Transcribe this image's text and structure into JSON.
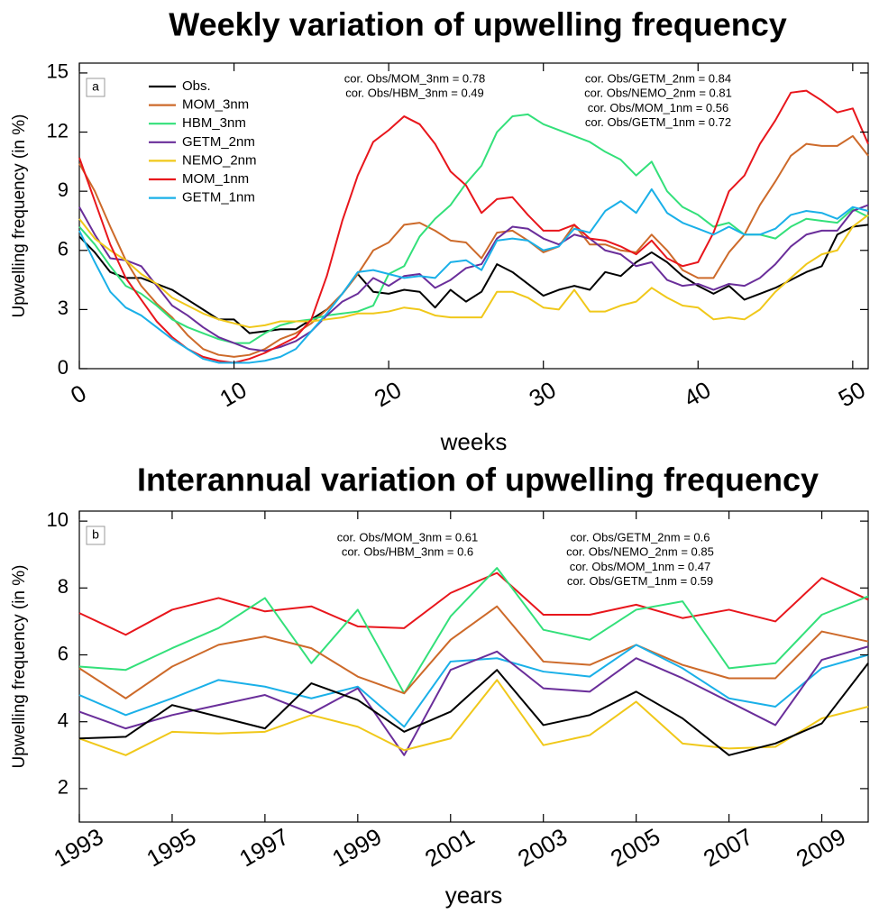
{
  "chart_data": [
    {
      "type": "line",
      "title": "Weekly variation of upwelling frequency",
      "panel_label": "a",
      "x_label": "weeks",
      "y_label": "Upwelling frequency (in %)",
      "x": [
        0,
        1,
        2,
        3,
        4,
        5,
        6,
        7,
        8,
        9,
        10,
        11,
        12,
        13,
        14,
        15,
        16,
        17,
        18,
        19,
        20,
        21,
        22,
        23,
        24,
        25,
        26,
        27,
        28,
        29,
        30,
        31,
        32,
        33,
        34,
        35,
        36,
        37,
        38,
        39,
        40,
        41,
        42,
        43,
        44,
        45,
        46,
        47,
        48,
        49,
        50,
        51
      ],
      "xlim": [
        0,
        51
      ],
      "xticks": [
        0,
        10,
        20,
        30,
        40,
        50
      ],
      "ylim": [
        0,
        15.5
      ],
      "yticks": [
        0,
        3,
        6,
        9,
        12,
        15
      ],
      "annotations": [
        "cor. Obs/MOM_3nm = 0.78",
        "cor. Obs/HBM_3nm = 0.49",
        "cor. Obs/GETM_2nm = 0.84",
        "cor. Obs/NEMO_2nm = 0.81",
        "cor. Obs/MOM_1nm = 0.56",
        "cor. Obs/GETM_1nm = 0.72"
      ],
      "series": [
        {
          "name": "Obs.",
          "color": "#000000",
          "values": [
            6.7,
            5.9,
            4.9,
            4.6,
            4.6,
            4.3,
            4.0,
            3.5,
            3.0,
            2.5,
            2.5,
            1.8,
            1.9,
            2.0,
            2.0,
            2.5,
            3.0,
            3.8,
            4.8,
            3.9,
            3.8,
            4.0,
            3.9,
            3.1,
            4.0,
            3.4,
            3.9,
            5.3,
            4.9,
            4.3,
            3.7,
            4.0,
            4.2,
            4.0,
            4.9,
            4.7,
            5.4,
            5.9,
            5.4,
            4.7,
            4.2,
            3.8,
            4.2,
            3.5,
            3.8,
            4.1,
            4.5,
            4.9,
            5.2,
            6.8,
            7.2,
            7.3
          ]
        },
        {
          "name": "MOM_3nm",
          "color": "#cd6a2a",
          "values": [
            10.4,
            9.0,
            7.2,
            5.5,
            4.2,
            3.3,
            2.6,
            1.7,
            1.0,
            0.7,
            0.6,
            0.7,
            1.0,
            1.5,
            1.8,
            2.3,
            3.0,
            3.8,
            4.8,
            6.0,
            6.4,
            7.3,
            7.4,
            7.0,
            6.5,
            6.4,
            5.6,
            6.9,
            7.0,
            6.5,
            5.9,
            6.2,
            7.3,
            6.3,
            6.3,
            6.0,
            5.9,
            6.8,
            6.0,
            5.0,
            4.6,
            4.6,
            5.9,
            6.8,
            8.3,
            9.5,
            10.8,
            11.4,
            11.3,
            11.3,
            11.8,
            10.8
          ]
        },
        {
          "name": "HBM_3nm",
          "color": "#33e07a",
          "values": [
            7.2,
            6.3,
            5.2,
            4.2,
            3.8,
            3.2,
            2.5,
            2.1,
            1.8,
            1.5,
            1.3,
            1.3,
            1.8,
            2.2,
            2.4,
            2.5,
            2.7,
            2.8,
            2.9,
            3.2,
            4.8,
            5.2,
            6.7,
            7.6,
            8.3,
            9.4,
            10.3,
            12.0,
            12.8,
            12.9,
            12.4,
            12.1,
            11.8,
            11.5,
            11.0,
            10.6,
            9.8,
            10.5,
            9.0,
            8.2,
            7.8,
            7.2,
            7.4,
            6.8,
            6.8,
            6.6,
            7.2,
            7.6,
            7.5,
            7.4,
            8.1,
            7.7
          ]
        },
        {
          "name": "GETM_2nm",
          "color": "#6a2e9a",
          "values": [
            8.2,
            6.8,
            5.6,
            5.5,
            5.2,
            4.2,
            3.2,
            2.7,
            2.1,
            1.6,
            1.3,
            1.0,
            0.9,
            1.1,
            1.4,
            1.9,
            2.7,
            3.4,
            3.8,
            4.6,
            4.2,
            4.7,
            4.8,
            4.1,
            4.5,
            5.1,
            5.3,
            6.6,
            7.2,
            7.1,
            6.6,
            6.3,
            6.8,
            6.6,
            6.0,
            5.8,
            5.2,
            5.4,
            4.5,
            4.2,
            4.3,
            4.0,
            4.3,
            4.2,
            4.6,
            5.3,
            6.2,
            6.8,
            7.0,
            7.0,
            8.0,
            8.3
          ]
        },
        {
          "name": "NEMO_2nm",
          "color": "#f0c81a",
          "values": [
            7.6,
            6.6,
            6.0,
            5.5,
            4.8,
            4.3,
            3.6,
            3.2,
            2.8,
            2.5,
            2.3,
            2.1,
            2.2,
            2.4,
            2.4,
            2.4,
            2.5,
            2.6,
            2.8,
            2.8,
            2.9,
            3.1,
            3.0,
            2.7,
            2.6,
            2.6,
            2.6,
            3.9,
            3.9,
            3.6,
            3.1,
            3.0,
            4.0,
            2.9,
            2.9,
            3.2,
            3.4,
            4.1,
            3.6,
            3.2,
            3.1,
            2.5,
            2.6,
            2.5,
            3.0,
            3.9,
            4.6,
            5.3,
            5.8,
            6.0,
            7.2,
            7.8
          ]
        },
        {
          "name": "MOM_1nm",
          "color": "#e8161c",
          "values": [
            10.7,
            8.5,
            6.3,
            4.6,
            3.5,
            2.4,
            1.6,
            1.0,
            0.6,
            0.4,
            0.3,
            0.5,
            0.8,
            1.2,
            1.6,
            2.5,
            4.7,
            7.5,
            9.8,
            11.5,
            12.1,
            12.8,
            12.4,
            11.4,
            10.0,
            9.3,
            7.9,
            8.6,
            8.7,
            7.8,
            7.0,
            7.0,
            7.3,
            6.6,
            6.5,
            6.2,
            5.8,
            6.5,
            5.6,
            5.2,
            5.4,
            6.9,
            9.0,
            9.8,
            11.4,
            12.6,
            14.0,
            14.1,
            13.6,
            13.0,
            13.2,
            11.4
          ]
        },
        {
          "name": "GETM_1nm",
          "color": "#1ab0e8",
          "values": [
            7.0,
            5.4,
            3.9,
            3.1,
            2.7,
            2.1,
            1.5,
            1.0,
            0.5,
            0.3,
            0.3,
            0.3,
            0.4,
            0.6,
            1.0,
            1.9,
            2.8,
            3.8,
            4.9,
            5.0,
            4.8,
            4.6,
            4.7,
            4.6,
            5.4,
            5.5,
            5.0,
            6.5,
            6.6,
            6.5,
            6.0,
            6.2,
            7.1,
            6.9,
            8.0,
            8.5,
            7.9,
            9.1,
            7.9,
            7.4,
            7.1,
            6.8,
            7.2,
            6.8,
            6.8,
            7.1,
            7.8,
            8.0,
            7.9,
            7.6,
            8.2,
            8.0
          ]
        }
      ]
    },
    {
      "type": "line",
      "title": "Interannual variation of upwelling frequency",
      "panel_label": "b",
      "x_label": "years",
      "y_label": "Upwelling frequency (in %)",
      "x": [
        1993,
        1994,
        1995,
        1996,
        1997,
        1998,
        1999,
        2000,
        2001,
        2002,
        2003,
        2004,
        2005,
        2006,
        2007,
        2008,
        2009,
        2010
      ],
      "xlim": [
        1993,
        2010
      ],
      "xticks": [
        1993,
        1995,
        1997,
        1999,
        2001,
        2003,
        2005,
        2007,
        2009
      ],
      "ylim": [
        1,
        10.3
      ],
      "yticks": [
        2,
        4,
        6,
        8,
        10
      ],
      "annotations": [
        "cor. Obs/MOM_3nm = 0.61",
        "cor. Obs/HBM_3nm = 0.6",
        "cor. Obs/GETM_2nm = 0.6",
        "cor. Obs/NEMO_2nm = 0.85",
        "cor. Obs/MOM_1nm = 0.47",
        "cor. Obs/GETM_1nm = 0.59"
      ],
      "series": [
        {
          "color": "#e8161c",
          "values": [
            7.25,
            6.6,
            7.35,
            7.7,
            7.3,
            7.45,
            6.85,
            6.8,
            7.85,
            8.45,
            7.2,
            7.2,
            7.5,
            7.1,
            7.35,
            7.0,
            8.3,
            7.65
          ]
        },
        {
          "color": "#33e07a",
          "values": [
            5.65,
            5.55,
            6.2,
            6.8,
            7.7,
            5.75,
            7.35,
            4.85,
            7.15,
            8.6,
            6.75,
            6.45,
            7.35,
            7.6,
            5.6,
            5.75,
            7.2,
            7.75
          ]
        },
        {
          "color": "#cd6a2a",
          "values": [
            5.6,
            4.7,
            5.65,
            6.3,
            6.55,
            6.2,
            5.35,
            4.85,
            6.45,
            7.45,
            5.8,
            5.7,
            6.3,
            5.7,
            5.3,
            5.3,
            6.7,
            6.4
          ]
        },
        {
          "color": "#1ab0e8",
          "values": [
            4.8,
            4.2,
            4.7,
            5.25,
            5.05,
            4.7,
            5.05,
            3.85,
            5.8,
            5.9,
            5.5,
            5.35,
            6.3,
            5.6,
            4.7,
            4.45,
            5.6,
            6.0
          ]
        },
        {
          "color": "#6a2e9a",
          "values": [
            4.3,
            3.8,
            4.2,
            4.5,
            4.8,
            4.25,
            5.0,
            3.0,
            5.55,
            6.1,
            5.0,
            4.9,
            5.9,
            5.3,
            4.6,
            3.9,
            5.85,
            6.25
          ]
        },
        {
          "color": "#f0c81a",
          "values": [
            3.5,
            3.0,
            3.7,
            3.65,
            3.7,
            4.2,
            3.85,
            3.15,
            3.5,
            5.25,
            3.3,
            3.6,
            4.6,
            3.35,
            3.2,
            3.25,
            4.1,
            4.45
          ]
        },
        {
          "color": "#000000",
          "values": [
            3.5,
            3.55,
            4.5,
            4.15,
            3.8,
            5.15,
            4.65,
            3.7,
            4.3,
            5.55,
            3.9,
            4.2,
            4.9,
            4.1,
            3.0,
            3.35,
            3.95,
            5.75
          ]
        }
      ]
    }
  ]
}
